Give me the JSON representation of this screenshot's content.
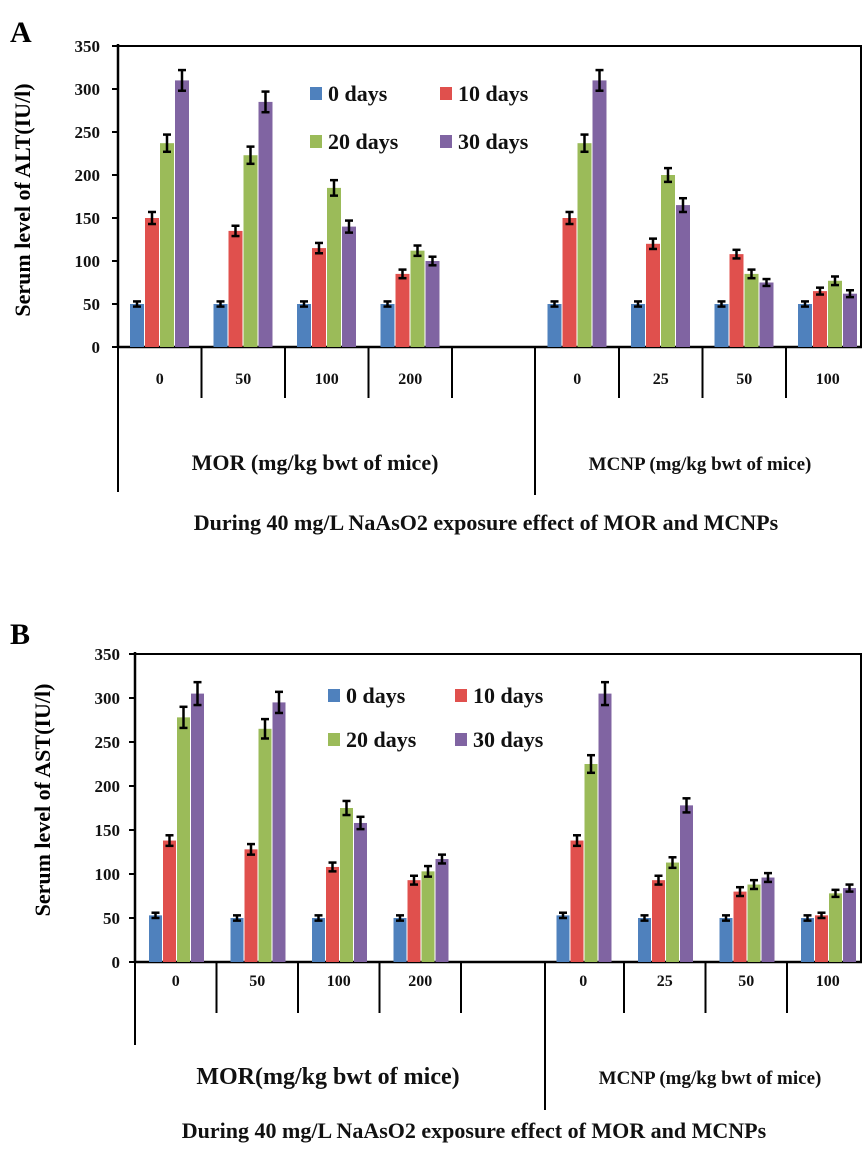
{
  "colors": {
    "0 days": "#4f81bd",
    "10 days": "#e0504d",
    "20 days": "#9bbb59",
    "30 days": "#8064a2"
  },
  "chart_data": [
    {
      "panel_label": "A",
      "type": "bar",
      "ylabel": "Serum level of ALT(IU/l)",
      "ylim": [
        0,
        350
      ],
      "yticks": [
        0,
        50,
        100,
        150,
        200,
        250,
        300,
        350
      ],
      "legend": {
        "placement": "top-center",
        "entries": [
          "0 days",
          "10 days",
          "20 days",
          "30 days"
        ]
      },
      "grid": false,
      "groups": [
        {
          "label": "MOR (mg/kg bwt of mice)",
          "categories": [
            "0",
            "50",
            "100",
            "200"
          ]
        },
        {
          "label": "MCNP (mg/kg bwt of mice)",
          "categories": [
            "0",
            "25",
            "50",
            "100"
          ]
        }
      ],
      "categories": [
        "0",
        "50",
        "100",
        "200",
        "0",
        "25",
        "50",
        "100"
      ],
      "series": [
        {
          "name": "0 days",
          "values": [
            50,
            50,
            50,
            50,
            50,
            50,
            50,
            50
          ],
          "errors": [
            3,
            3,
            3,
            3,
            3,
            3,
            3,
            3
          ]
        },
        {
          "name": "10 days",
          "values": [
            150,
            135,
            115,
            85,
            150,
            120,
            108,
            65
          ],
          "errors": [
            7,
            6,
            6,
            5,
            7,
            6,
            5,
            4
          ]
        },
        {
          "name": "20 days",
          "values": [
            237,
            223,
            185,
            112,
            237,
            200,
            85,
            77
          ],
          "errors": [
            10,
            10,
            9,
            6,
            10,
            8,
            5,
            5
          ]
        },
        {
          "name": "30 days",
          "values": [
            310,
            285,
            140,
            100,
            310,
            165,
            75,
            62
          ],
          "errors": [
            12,
            12,
            7,
            5,
            12,
            8,
            4,
            4
          ]
        }
      ],
      "caption": "During 40 mg/L NaAsO2 exposure effect of MOR and MCNPs"
    },
    {
      "panel_label": "B",
      "type": "bar",
      "ylabel": "Serum level of AST(IU/l)",
      "ylim": [
        0,
        350
      ],
      "yticks": [
        0,
        50,
        100,
        150,
        200,
        250,
        300,
        350
      ],
      "legend": {
        "placement": "top-center",
        "entries": [
          "0 days",
          "10 days",
          "20 days",
          "30 days"
        ]
      },
      "grid": false,
      "groups": [
        {
          "label": "MOR(mg/kg bwt of mice)",
          "categories": [
            "0",
            "50",
            "100",
            "200"
          ]
        },
        {
          "label": "MCNP (mg/kg bwt of mice)",
          "categories": [
            "0",
            "25",
            "50",
            "100"
          ]
        }
      ],
      "categories": [
        "0",
        "50",
        "100",
        "200",
        "0",
        "25",
        "50",
        "100"
      ],
      "series": [
        {
          "name": "0 days",
          "values": [
            53,
            50,
            50,
            50,
            53,
            50,
            50,
            50
          ],
          "errors": [
            3,
            3,
            3,
            3,
            3,
            3,
            3,
            3
          ]
        },
        {
          "name": "10 days",
          "values": [
            138,
            128,
            108,
            93,
            138,
            93,
            80,
            53
          ],
          "errors": [
            6,
            6,
            5,
            5,
            6,
            5,
            5,
            3
          ]
        },
        {
          "name": "20 days",
          "values": [
            278,
            265,
            175,
            103,
            225,
            113,
            88,
            78
          ],
          "errors": [
            12,
            11,
            8,
            6,
            10,
            6,
            5,
            4
          ]
        },
        {
          "name": "30 days",
          "values": [
            305,
            295,
            158,
            117,
            305,
            178,
            96,
            84
          ],
          "errors": [
            13,
            12,
            7,
            5,
            13,
            8,
            5,
            4
          ]
        }
      ],
      "caption": "During 40 mg/L NaAsO2 exposure effect of MOR and MCNPs"
    }
  ]
}
